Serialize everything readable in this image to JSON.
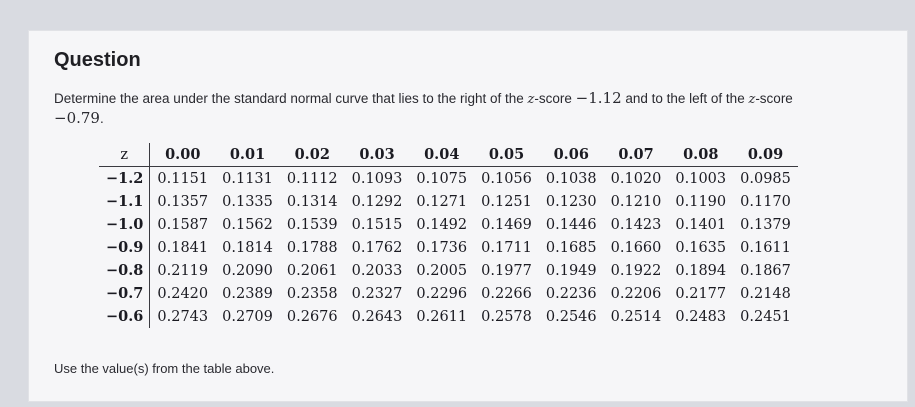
{
  "question": {
    "title": "Question",
    "prompt_part1": "Determine the area under the standard normal curve that lies to the right of the ",
    "z_label": "z",
    "prompt_part2": "-score ",
    "value1": "−1.12",
    "prompt_part3": " and to the left of the ",
    "prompt_part4": "-score",
    "value2": "−0.79",
    "prompt_end": "."
  },
  "table": {
    "z_header": "z",
    "columns": [
      "0.00",
      "0.01",
      "0.02",
      "0.03",
      "0.04",
      "0.05",
      "0.06",
      "0.07",
      "0.08",
      "0.09"
    ],
    "rows": [
      {
        "z": "−1.2",
        "values": [
          "0.1151",
          "0.1131",
          "0.1112",
          "0.1093",
          "0.1075",
          "0.1056",
          "0.1038",
          "0.1020",
          "0.1003",
          "0.0985"
        ]
      },
      {
        "z": "−1.1",
        "values": [
          "0.1357",
          "0.1335",
          "0.1314",
          "0.1292",
          "0.1271",
          "0.1251",
          "0.1230",
          "0.1210",
          "0.1190",
          "0.1170"
        ]
      },
      {
        "z": "−1.0",
        "values": [
          "0.1587",
          "0.1562",
          "0.1539",
          "0.1515",
          "0.1492",
          "0.1469",
          "0.1446",
          "0.1423",
          "0.1401",
          "0.1379"
        ]
      },
      {
        "z": "−0.9",
        "values": [
          "0.1841",
          "0.1814",
          "0.1788",
          "0.1762",
          "0.1736",
          "0.1711",
          "0.1685",
          "0.1660",
          "0.1635",
          "0.1611"
        ]
      },
      {
        "z": "−0.8",
        "values": [
          "0.2119",
          "0.2090",
          "0.2061",
          "0.2033",
          "0.2005",
          "0.1977",
          "0.1949",
          "0.1922",
          "0.1894",
          "0.1867"
        ]
      },
      {
        "z": "−0.7",
        "values": [
          "0.2420",
          "0.2389",
          "0.2358",
          "0.2327",
          "0.2296",
          "0.2266",
          "0.2236",
          "0.2206",
          "0.2177",
          "0.2148"
        ]
      },
      {
        "z": "−0.6",
        "values": [
          "0.2743",
          "0.2709",
          "0.2676",
          "0.2643",
          "0.2611",
          "0.2578",
          "0.2546",
          "0.2514",
          "0.2483",
          "0.2451"
        ]
      }
    ]
  },
  "footer": {
    "note": "Use the value(s) from the table above."
  }
}
